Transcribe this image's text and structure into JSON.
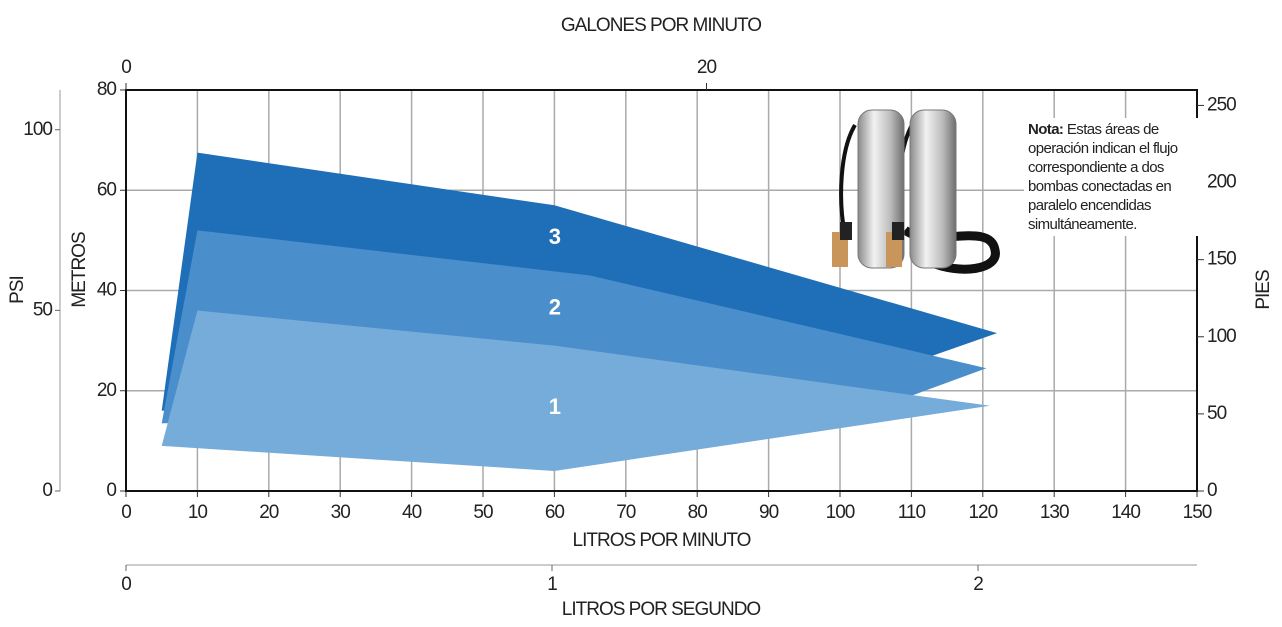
{
  "chart_data": {
    "type": "area",
    "x_label": "LITROS POR MINUTO",
    "y_label": "METROS",
    "xlim": [
      0,
      150
    ],
    "xticks": [
      0,
      10,
      20,
      30,
      40,
      50,
      60,
      70,
      80,
      90,
      100,
      110,
      120,
      130,
      140,
      150
    ],
    "ylim": [
      0,
      80
    ],
    "yticks": [
      0,
      20,
      40,
      60,
      80
    ],
    "grid": true,
    "psi_axis": {
      "label": "PSI",
      "lim": [
        0,
        111
      ],
      "ticks": [
        0,
        50,
        100
      ]
    },
    "pies_axis": {
      "label": "PIES",
      "lim": [
        0,
        260
      ],
      "ticks": [
        0,
        50,
        100,
        150,
        200,
        250
      ]
    },
    "gpm_axis": {
      "label": "GALONES POR MINUTO",
      "lim": [
        0,
        36.9
      ],
      "ticks": [
        0,
        20
      ]
    },
    "lps_axis": {
      "label": "LITROS POR SEGUNDO",
      "lim": [
        0,
        2.514
      ],
      "ticks": [
        0,
        1,
        2
      ]
    },
    "series": [
      {
        "name": "3",
        "color": "#1f6fb8",
        "x": [
          5,
          10,
          60,
          122,
          113,
          5
        ],
        "values": [
          16,
          67.5,
          57,
          31.5,
          27,
          16
        ]
      },
      {
        "name": "2",
        "color": "#4a8fcb",
        "x": [
          5,
          10,
          65,
          120.5,
          110,
          5
        ],
        "values": [
          13.5,
          52,
          43,
          24.5,
          19,
          13.5
        ]
      },
      {
        "name": "1",
        "color": "#76acd9",
        "x": [
          5,
          10,
          60,
          121,
          60,
          5
        ],
        "values": [
          9,
          36,
          29,
          17,
          4,
          9
        ]
      }
    ],
    "note": {
      "bold": "Nota:",
      "text": "Estas áreas de operación indican el flujo correspondiente a dos bombas conectadas en paralelo encendidas simultáneamente."
    }
  }
}
